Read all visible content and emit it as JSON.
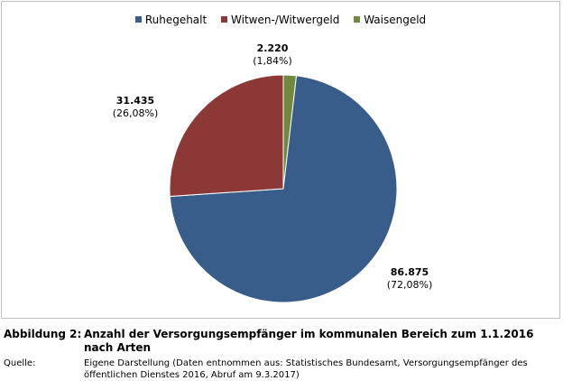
{
  "chart_data": {
    "type": "pie",
    "categories": [
      "Ruhegehalt",
      "Witwen-/Witwergeld",
      "Waisengeld"
    ],
    "values": [
      86875,
      31435,
      2220
    ],
    "value_labels": [
      "86.875",
      "31.435",
      "2.220"
    ],
    "percent_labels": [
      "(72,08%)",
      "(26,08%)",
      "(1,84%)"
    ],
    "colors": [
      "#385d8a",
      "#8c3836",
      "#71893f"
    ],
    "legend": {
      "placement": "top",
      "items": [
        "Ruhegehalt",
        "Witwen-/Witwergeld",
        "Waisengeld"
      ]
    }
  },
  "caption": {
    "figure_label": "Abbildung 2:",
    "figure_title": "Anzahl der Versorgungsempfänger im kommunalen Bereich zum 1.1.2016 nach Arten",
    "source_label": "Quelle:",
    "source_text": "Eigene Darstellung (Daten entnommen aus: Statistisches Bundesamt, Versorgungsempfänger des öffentlichen Dienstes 2016, Abruf am 9.3.2017)"
  }
}
